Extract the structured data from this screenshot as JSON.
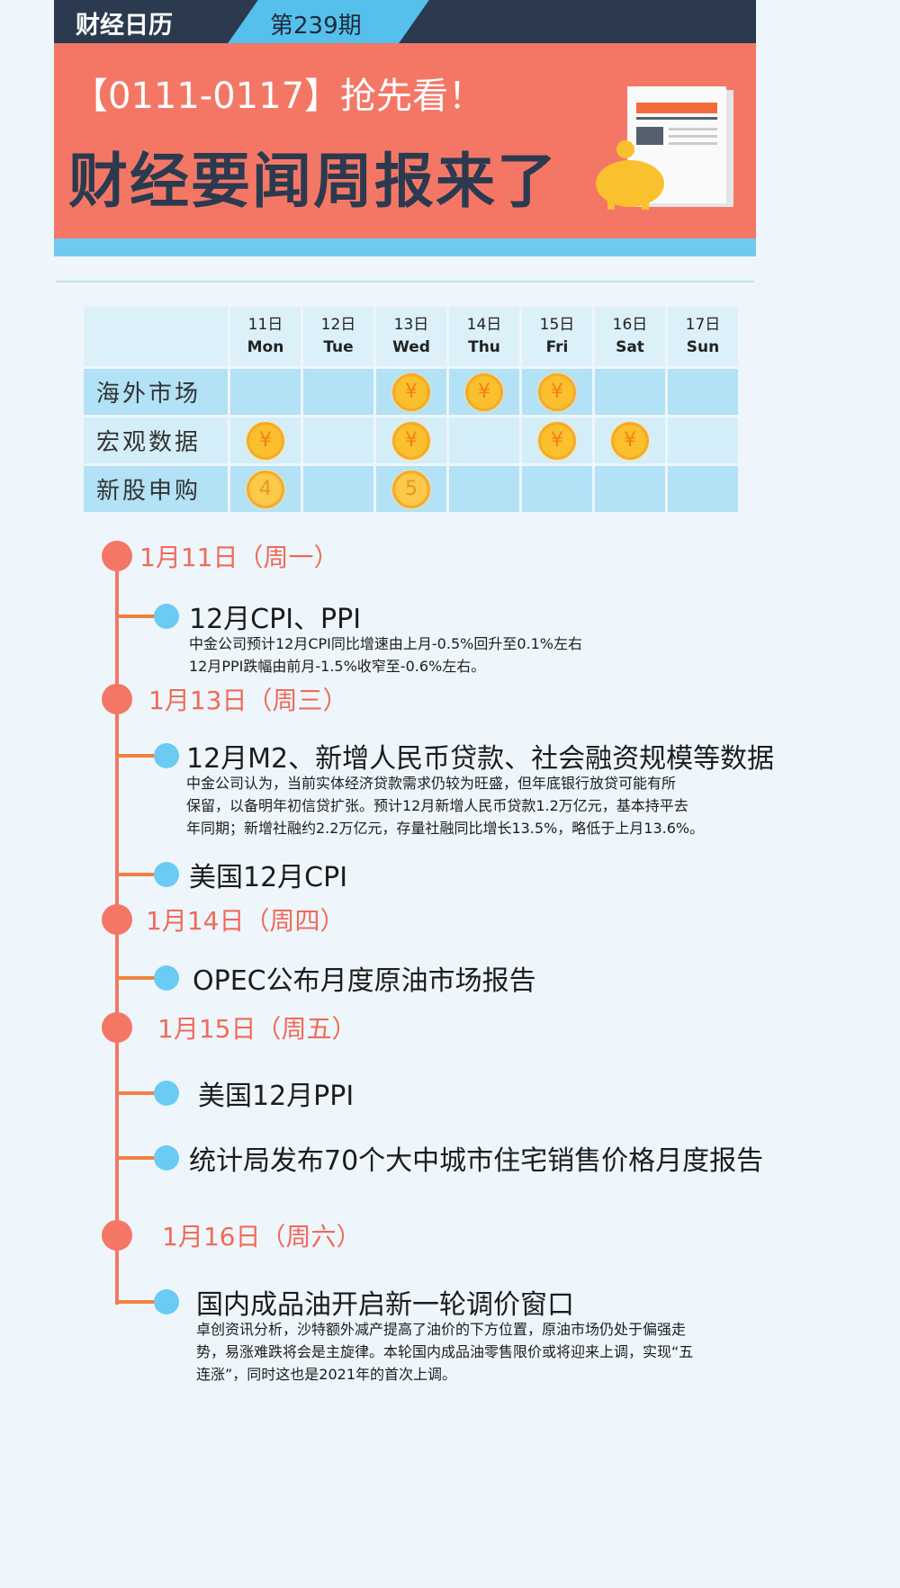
{
  "header": {
    "brand": "财经日历",
    "issue": "第239期",
    "subtitle": "【0111-0117】抢先看！",
    "title": "财经要闻周报来了"
  },
  "calendar": {
    "days": [
      {
        "date": "11日",
        "weekday": "Mon"
      },
      {
        "date": "12日",
        "weekday": "Tue"
      },
      {
        "date": "13日",
        "weekday": "Wed"
      },
      {
        "date": "14日",
        "weekday": "Thu"
      },
      {
        "date": "15日",
        "weekday": "Fri"
      },
      {
        "date": "16日",
        "weekday": "Sat"
      },
      {
        "date": "17日",
        "weekday": "Sun"
      }
    ],
    "rows": [
      {
        "label": "海外市场",
        "cells": [
          "",
          "",
          "¥",
          "¥",
          "¥",
          "",
          ""
        ]
      },
      {
        "label": "宏观数据",
        "cells": [
          "¥",
          "",
          "¥",
          "",
          "¥",
          "¥",
          ""
        ]
      },
      {
        "label": "新股申购",
        "cells": [
          "4",
          "",
          "5",
          "",
          "",
          "",
          ""
        ]
      }
    ]
  },
  "timeline": [
    {
      "date": "1月11日（周一）"
    },
    {
      "title": "12月CPI、PPI",
      "desc": [
        "中金公司预计12月CPI同比增速由上月-0.5%回升至0.1%左右",
        "12月PPI跌幅由前月-1.5%收窄至-0.6%左右。"
      ]
    },
    {
      "date": "1月13日（周三）"
    },
    {
      "title": "12月M2、新增人民币贷款、社会融资规模等数据",
      "desc": [
        "中金公司认为，当前实体经济贷款需求仍较为旺盛，但年底银行放贷可能有所",
        "保留，以备明年初信贷扩张。预计12月新增人民币贷款1.2万亿元，基本持平去",
        "年同期；新增社融约2.2万亿元，存量社融同比增长13.5%，略低于上月13.6%。"
      ]
    },
    {
      "title": "美国12月CPI"
    },
    {
      "date": "1月14日（周四）"
    },
    {
      "title": "OPEC公布月度原油市场报告"
    },
    {
      "date": "1月15日（周五）"
    },
    {
      "title": "美国12月PPI"
    },
    {
      "title": "统计局发布70个大中城市住宅销售价格月度报告"
    },
    {
      "date": "1月16日（周六）"
    },
    {
      "title": "国内成品油开启新一轮调价窗口",
      "desc": [
        "卓创资讯分析，沙特额外减产提高了油价的下方位置，原油市场仍处于偏强走",
        "势，易涨难跌将会是主旋律。本轮国内成品油零售限价或将迎来上调，实现“五",
        "连涨”，同时这也是2021年的首次上调。"
      ]
    }
  ],
  "colors": {
    "dark": "#2b3a4f",
    "accent": "#f47766",
    "blue": "#6ecbef",
    "coin": "#fbc02d"
  }
}
